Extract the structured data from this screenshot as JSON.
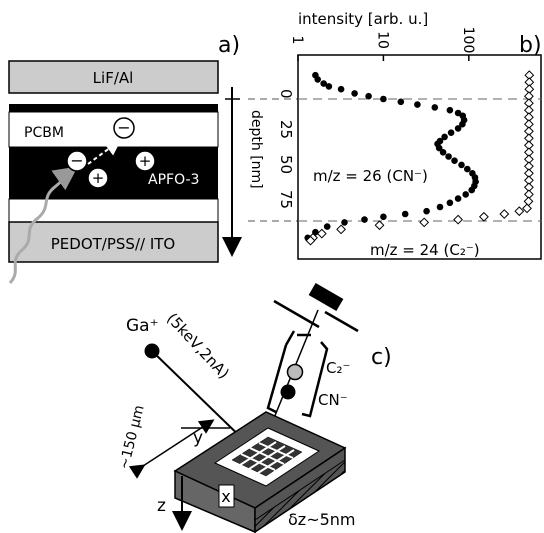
{
  "panel_a": {
    "label": "a)",
    "layers": {
      "top": "LiF/Al",
      "pcbm": "PCBM",
      "apfo": "APFO-3",
      "bottom": "PEDOT/PSS// ITO"
    },
    "depth_axis": {
      "label": "depth [nm]",
      "ticks": [
        "0",
        "25",
        "50",
        "75"
      ]
    },
    "charge_symbols": {
      "minus": "−",
      "plus": "+"
    }
  },
  "panel_b": {
    "label": "b)",
    "x_axis_label": "intensity [arb. u.]",
    "x_ticks": [
      "1",
      "10",
      "100"
    ],
    "annotation_cn": "m/z = 26 (CN⁻)",
    "annotation_c2": "m/z = 24 (C₂⁻)"
  },
  "panel_c": {
    "label": "c)",
    "ion_source": "Ga⁺",
    "beam_params": "(5keV,2nA)",
    "ion_c2": "C₂⁻",
    "ion_cn": "CN⁻",
    "lateral_size": "~150 µm",
    "axis_x": "x",
    "axis_y": "y",
    "axis_z": "z",
    "depth_resolution": "δz~5nm"
  },
  "chart_data": {
    "type": "scatter",
    "x_axis": "intensity [arb. u.]",
    "x_scale": "log",
    "xlim": [
      1,
      700
    ],
    "y_axis": "depth [nm]",
    "ylim": [
      -20,
      105
    ],
    "y_reversed": true,
    "grid": false,
    "series": [
      {
        "name": "m/z = 26 (CN⁻)",
        "marker": "filled-circle",
        "points": [
          [
            1.6,
            -17
          ],
          [
            1.7,
            -14
          ],
          [
            2.0,
            -11
          ],
          [
            2.3,
            -9
          ],
          [
            3.2,
            -7
          ],
          [
            4.6,
            -4
          ],
          [
            6.7,
            -2
          ],
          [
            10,
            0
          ],
          [
            16,
            2
          ],
          [
            25,
            4
          ],
          [
            40,
            6
          ],
          [
            60,
            8
          ],
          [
            75,
            10
          ],
          [
            85,
            12
          ],
          [
            88,
            15
          ],
          [
            84,
            18
          ],
          [
            75,
            21
          ],
          [
            62,
            24
          ],
          [
            52,
            27
          ],
          [
            46,
            30
          ],
          [
            43,
            32
          ],
          [
            45,
            35
          ],
          [
            50,
            38
          ],
          [
            58,
            41
          ],
          [
            68,
            44
          ],
          [
            82,
            47
          ],
          [
            96,
            50
          ],
          [
            110,
            53
          ],
          [
            118,
            56
          ],
          [
            120,
            59
          ],
          [
            116,
            62
          ],
          [
            108,
            65
          ],
          [
            92,
            68
          ],
          [
            75,
            71
          ],
          [
            60,
            74
          ],
          [
            46,
            77
          ],
          [
            32,
            80
          ],
          [
            18,
            82
          ],
          [
            10,
            84
          ],
          [
            6,
            86
          ],
          [
            3.5,
            88
          ],
          [
            2.2,
            91
          ],
          [
            1.6,
            95
          ],
          [
            1.3,
            99
          ]
        ]
      },
      {
        "name": "m/z = 24 (C₂⁻)",
        "marker": "open-diamond",
        "points": [
          [
            510,
            -17
          ],
          [
            510,
            -12
          ],
          [
            510,
            -7
          ],
          [
            505,
            -2
          ],
          [
            505,
            3
          ],
          [
            505,
            8
          ],
          [
            505,
            13
          ],
          [
            505,
            18
          ],
          [
            505,
            23
          ],
          [
            505,
            28
          ],
          [
            505,
            33
          ],
          [
            505,
            38
          ],
          [
            505,
            43
          ],
          [
            505,
            48
          ],
          [
            505,
            53
          ],
          [
            505,
            58
          ],
          [
            505,
            63
          ],
          [
            505,
            68
          ],
          [
            500,
            73
          ],
          [
            480,
            78
          ],
          [
            390,
            80
          ],
          [
            260,
            82
          ],
          [
            150,
            84
          ],
          [
            75,
            86
          ],
          [
            30,
            88
          ],
          [
            9,
            90
          ],
          [
            3.2,
            93
          ],
          [
            1.9,
            96
          ],
          [
            1.5,
            99
          ],
          [
            1.4,
            101
          ]
        ]
      }
    ]
  }
}
